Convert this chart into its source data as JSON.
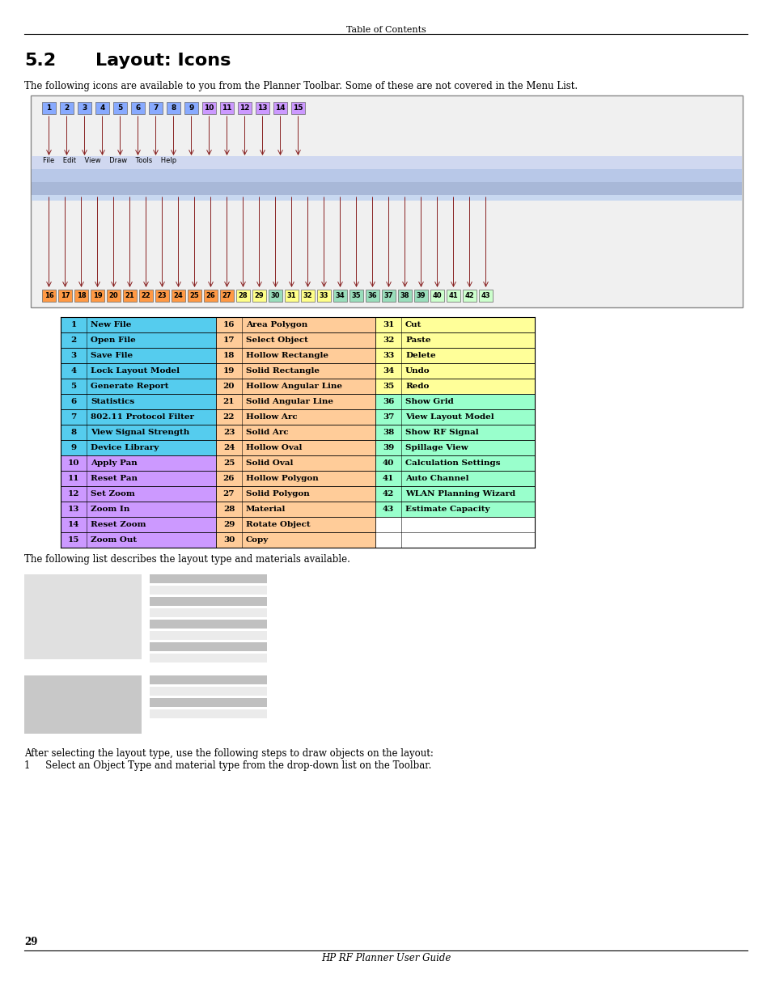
{
  "page_title": "Table of Contents",
  "section_title_num": "5.2",
  "section_title_text": "Layout: Icons",
  "section_text": "The following icons are available to you from the Planner Toolbar. Some of these are not covered in the Menu List.",
  "table_rows": [
    [
      "1",
      "New File",
      "16",
      "Area Polygon",
      "31",
      "Cut"
    ],
    [
      "2",
      "Open File",
      "17",
      "Select Object",
      "32",
      "Paste"
    ],
    [
      "3",
      "Save File",
      "18",
      "Hollow Rectangle",
      "33",
      "Delete"
    ],
    [
      "4",
      "Lock Layout Model",
      "19",
      "Solid Rectangle",
      "34",
      "Undo"
    ],
    [
      "5",
      "Generate Report",
      "20",
      "Hollow Angular Line",
      "35",
      "Redo"
    ],
    [
      "6",
      "Statistics",
      "21",
      "Solid Angular Line",
      "36",
      "Show Grid"
    ],
    [
      "7",
      "802.11 Protocol Filter",
      "22",
      "Hollow Arc",
      "37",
      "View Layout Model"
    ],
    [
      "8",
      "View Signal Strength",
      "23",
      "Solid Arc",
      "38",
      "Show RF Signal"
    ],
    [
      "9",
      "Device Library",
      "24",
      "Hollow Oval",
      "39",
      "Spillage View"
    ],
    [
      "10",
      "Apply Pan",
      "25",
      "Solid Oval",
      "40",
      "Calculation Settings"
    ],
    [
      "11",
      "Reset Pan",
      "26",
      "Hollow Polygon",
      "41",
      "Auto Channel"
    ],
    [
      "12",
      "Set Zoom",
      "27",
      "Solid Polygon",
      "42",
      "WLAN Planning Wizard"
    ],
    [
      "13",
      "Zoom In",
      "28",
      "Material",
      "43",
      "Estimate Capacity"
    ],
    [
      "14",
      "Reset Zoom",
      "29",
      "Rotate Object",
      "",
      ""
    ],
    [
      "15",
      "Zoom Out",
      "30",
      "Copy",
      "",
      ""
    ]
  ],
  "following_text": "The following list describes the layout type and materials available.",
  "after_text1": "After selecting the layout type, use the following steps to draw objects on the layout:",
  "after_text2": "1     Select an Object Type and material type from the drop-down list on the Toolbar.",
  "footer_text": "HP RF Planner User Guide",
  "page_number": "29",
  "cyan_color": "#55CCEE",
  "purple_color": "#CC99FF",
  "peach_color": "#FFCC99",
  "yellow_color": "#FFFF99",
  "mint_color": "#99FFCC",
  "num_colors_top": [
    "#88AAFF",
    "#88AAFF",
    "#88AAFF",
    "#88AAFF",
    "#88AAFF",
    "#88AAFF",
    "#88AAFF",
    "#88AAFF",
    "#88AAFF",
    "#CC99FF",
    "#CC99FF",
    "#CC99FF",
    "#CC99FF",
    "#CC99FF",
    "#CC99FF"
  ],
  "num_colors_bot": [
    "#FF9944",
    "#FF9944",
    "#FF9944",
    "#FF9944",
    "#FF9944",
    "#FF9944",
    "#FF9944",
    "#FF9944",
    "#FF9944",
    "#FF9944",
    "#FF9944",
    "#FF9944",
    "#FFFF88",
    "#FFFF88",
    "#99DDBB",
    "#FFFF88",
    "#FFFF88",
    "#FFFF88",
    "#99DDBB",
    "#99DDBB",
    "#99DDBB",
    "#99DDBB",
    "#99DDBB",
    "#99DDBB",
    "#CCFFCC",
    "#CCFFCC",
    "#CCFFCC",
    "#CCFFCC"
  ]
}
